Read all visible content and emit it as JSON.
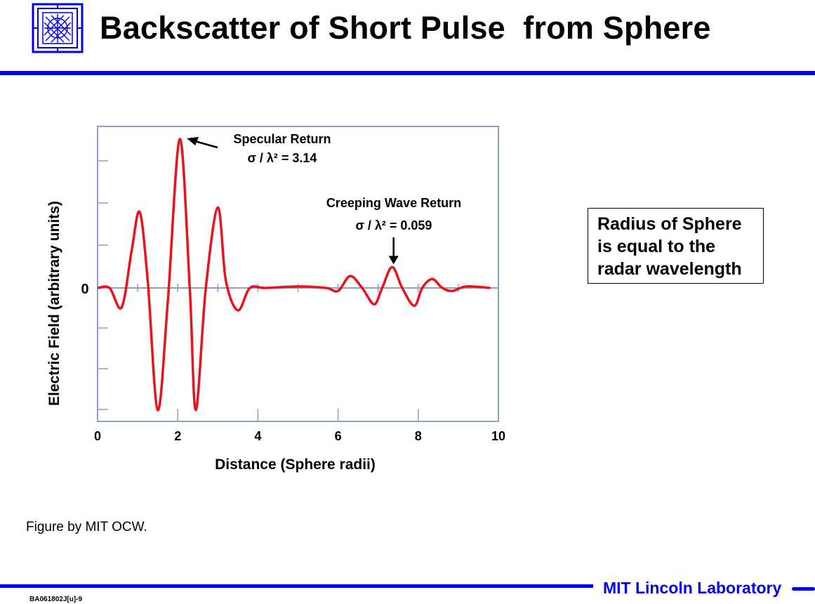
{
  "slide": {
    "title": "Backscatter of Short Pulse  from Sphere",
    "caption": "Figure by MIT OCW.",
    "note_lines": [
      "Radius of Sphere",
      "is equal to the",
      "radar wavelength"
    ],
    "footer_lab": "MIT Lincoln Laboratory",
    "footer_code": "BA061802J[u]-9",
    "logo_icon": "mit-ll-logo-icon",
    "accent_color": "#0000ee",
    "curve_color": "#e8141c"
  },
  "chart_data": {
    "type": "line",
    "title": "",
    "xlabel": "Distance (Sphere radii)",
    "ylabel": "Electric Field (arbitrary units)",
    "xlim": [
      0,
      10
    ],
    "ylim": [
      -1.05,
      1.05
    ],
    "xticks": [
      "0",
      "2",
      "4",
      "6",
      "8",
      "10"
    ],
    "yticks": [
      "0"
    ],
    "grid": false,
    "series": [
      {
        "x": [
          0,
          0.3,
          0.6,
          0.85,
          1.05,
          1.25,
          1.5,
          1.75,
          2.05,
          2.3,
          2.45,
          2.7,
          3.0,
          3.2,
          3.5,
          3.8,
          4.2,
          5.0,
          5.7,
          6.0,
          6.3,
          6.6,
          6.9,
          7.1,
          7.35,
          7.6,
          7.9,
          8.1,
          8.35,
          8.6,
          8.85,
          9.2,
          9.8
        ],
        "y": [
          0,
          0,
          -0.13,
          0.25,
          0.51,
          0.05,
          -0.82,
          -0.1,
          1.0,
          0.0,
          -0.82,
          0.0,
          0.54,
          0.05,
          -0.15,
          0.0,
          0.0,
          0.01,
          0.0,
          -0.02,
          0.08,
          0.0,
          -0.11,
          0.0,
          0.14,
          0.0,
          -0.12,
          0.0,
          0.06,
          0.0,
          -0.02,
          0.01,
          0.0
        ]
      }
    ],
    "annotations": [
      {
        "label": "Specular Return",
        "formula": "σ / λ² = 3.14",
        "x": 2.05,
        "y": 1.0
      },
      {
        "label": "Creeping Wave Return",
        "formula": "σ / λ² = 0.059",
        "x": 7.35,
        "y": 0.14
      }
    ]
  }
}
